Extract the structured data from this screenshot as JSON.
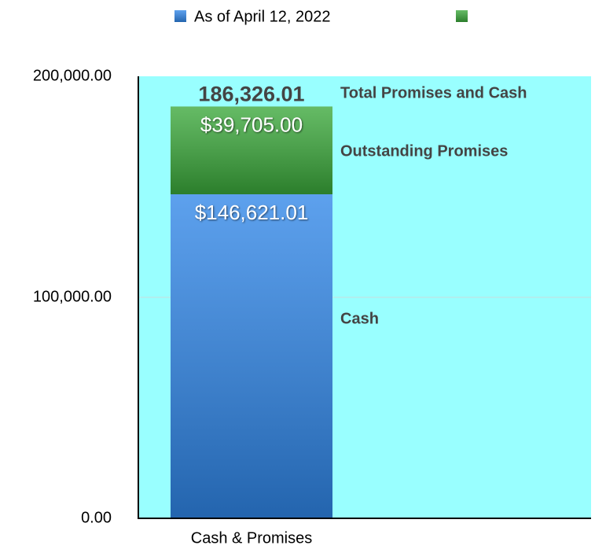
{
  "chart_data": {
    "type": "stacked_bar",
    "categories": [
      "Cash & Promises"
    ],
    "series": [
      {
        "name": "As of April 12, 2022",
        "color": "#2f86e8",
        "values": [
          146621.01
        ],
        "value_labels": [
          "$146,621.01"
        ]
      },
      {
        "color": "#3aa83a",
        "values": [
          39705.0
        ],
        "value_labels": [
          "$39,705.00"
        ]
      }
    ],
    "total_label": "186,326.01",
    "annotations": [
      "Total Promises and Cash",
      "Outstanding Promises",
      "Cash"
    ],
    "ylim": [
      0,
      200000
    ],
    "yticks": [
      {
        "value": 0,
        "label": "0.00"
      },
      {
        "value": 100000,
        "label": "100,000.00"
      },
      {
        "value": 200000,
        "label": "200,000.00"
      }
    ],
    "grid": true,
    "legend": "top",
    "background": "#99ffff"
  }
}
